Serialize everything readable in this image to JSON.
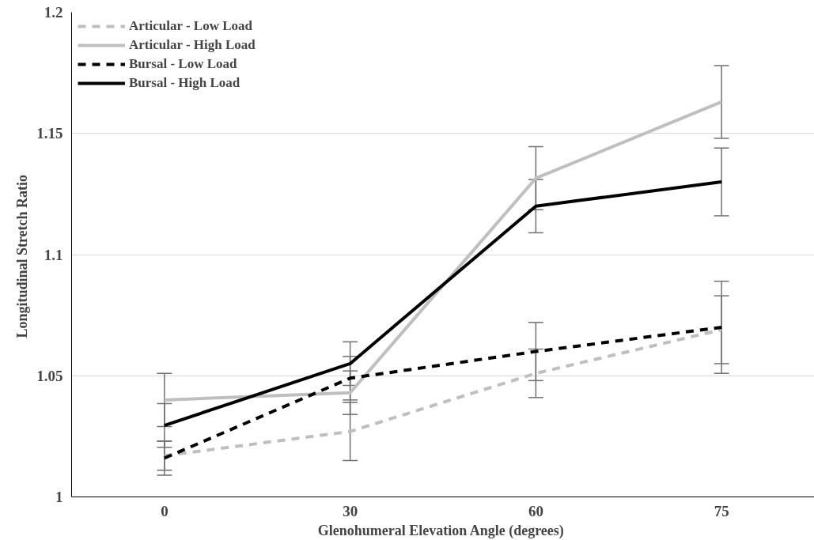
{
  "chart_data": {
    "type": "line",
    "xlabel": "Glenohumeral  Elevation Angle (degrees)",
    "ylabel": "Longitudinal  Stretch Ratio",
    "categories": [
      "0",
      "30",
      "60",
      "75"
    ],
    "series": [
      {
        "name": "Articular - Low Load",
        "color": "#bfbfbf",
        "line_style": "dashed",
        "values": [
          1.017,
          1.027,
          1.051,
          1.069
        ],
        "errors": [
          0.006,
          0.012,
          0.01,
          0.014
        ]
      },
      {
        "name": "Articular - High Load",
        "color": "#bfbfbf",
        "line_style": "solid",
        "values": [
          1.04,
          1.043,
          1.1315,
          1.163
        ],
        "errors": [
          0.011,
          0.009,
          0.013,
          0.015
        ]
      },
      {
        "name": "Bursal - Low Load",
        "color": "#000000",
        "line_style": "dashed",
        "values": [
          1.016,
          1.049,
          1.06,
          1.07
        ],
        "errors": [
          0.007,
          0.009,
          0.012,
          0.019
        ]
      },
      {
        "name": "Bursal - High Load",
        "color": "#000000",
        "line_style": "solid",
        "values": [
          1.0295,
          1.055,
          1.12,
          1.13
        ],
        "errors": [
          0.009,
          0.009,
          0.011,
          0.014
        ]
      }
    ],
    "ylim": [
      1,
      1.2
    ],
    "yticks": [
      1,
      1.05,
      1.1,
      1.15,
      1.2
    ],
    "grid": "y",
    "legend": "top left",
    "marker": "none"
  }
}
